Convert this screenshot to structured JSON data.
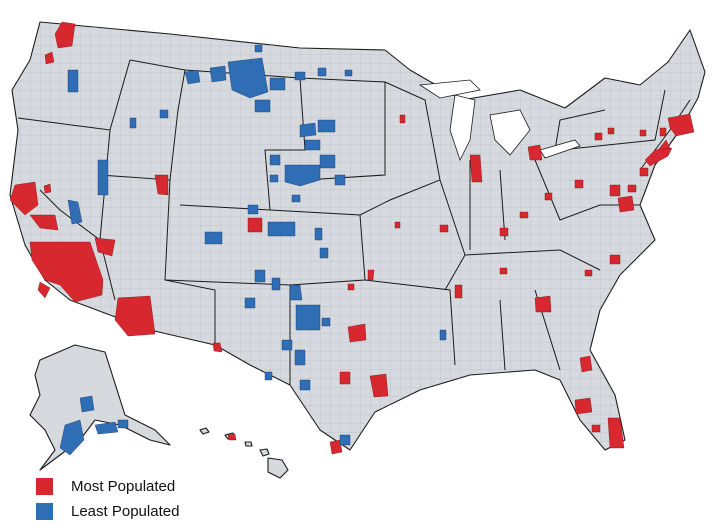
{
  "legend": {
    "items": [
      {
        "label": "Most Populated",
        "color": "#d7282f"
      },
      {
        "label": "Least Populated",
        "color": "#2f6db5"
      }
    ]
  },
  "colors": {
    "land": "#d6d9de",
    "border": "#1b1b1b",
    "county_lines": "#9ea3aa"
  }
}
